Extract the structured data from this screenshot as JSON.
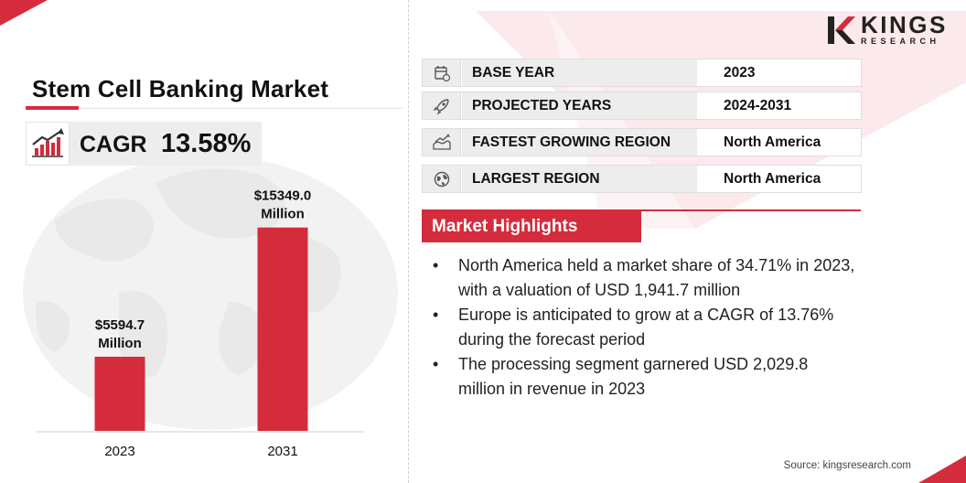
{
  "header": {
    "title": "Stem Cell Banking Market",
    "cagr_label": "CAGR",
    "cagr_value": "13.58%"
  },
  "brand": {
    "name": "KINGS",
    "tagline": "RESEARCH"
  },
  "colors": {
    "accent": "#d42c3c",
    "panel": "#ededed"
  },
  "chart_data": {
    "type": "bar",
    "categories": [
      "2023",
      "2031"
    ],
    "values": [
      5594.7,
      15349.0
    ],
    "data_labels": [
      [
        "$5594.7",
        "Million"
      ],
      [
        "$15349.0",
        "Million"
      ]
    ],
    "ylim": [
      0,
      17400
    ],
    "grid": false,
    "title": "",
    "xlabel": "",
    "ylabel": ""
  },
  "info": [
    {
      "icon": "calendar-icon",
      "label": "BASE YEAR",
      "value": "2023"
    },
    {
      "icon": "rocket-icon",
      "label": "PROJECTED YEARS",
      "value": "2024-2031"
    },
    {
      "icon": "growth-map-icon",
      "label": "FASTEST GROWING REGION",
      "value": "North America"
    },
    {
      "icon": "globe-icon",
      "label": "LARGEST REGION",
      "value": "North America"
    }
  ],
  "highlights": {
    "title": "Market Highlights",
    "items": [
      [
        "North America held a market share of 34.71% in 2023,",
        "with a valuation of USD 1,941.7 million"
      ],
      [
        "Europe is anticipated to grow at a CAGR of 13.76%",
        "during the forecast period"
      ],
      [
        "The processing segment garnered USD 2,029.8",
        "million in revenue in 2023"
      ]
    ]
  },
  "source": "Source: kingsresearch.com"
}
